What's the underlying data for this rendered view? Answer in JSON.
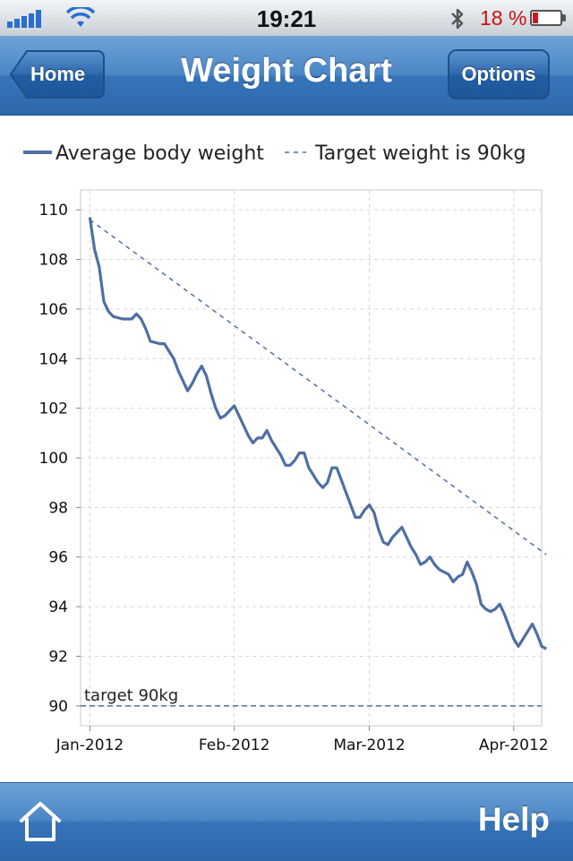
{
  "status_bar": {
    "time": "19:21",
    "battery_percent": "18 %",
    "signal_level": 5,
    "battery_level": 0.18
  },
  "navbar": {
    "title": "Weight Chart",
    "back_label": "Home",
    "options_label": "Options"
  },
  "tabbar": {
    "help_label": "Help",
    "home_icon": "home-icon"
  },
  "colors": {
    "series": "#4f6fa3",
    "nav": "#3674b9",
    "battery": "#cc1010"
  },
  "chart_data": {
    "type": "line",
    "grid": true,
    "legend": "top",
    "ylim": [
      89.2,
      110.8
    ],
    "y_ticks": [
      90,
      92,
      94,
      96,
      98,
      100,
      102,
      104,
      106,
      108,
      110
    ],
    "x_ticks": [
      {
        "date": "2012-01-01",
        "label": "Jan-2012"
      },
      {
        "date": "2012-02-01",
        "label": "Feb-2012"
      },
      {
        "date": "2012-03-01",
        "label": "Mar-2012"
      },
      {
        "date": "2012-04-01",
        "label": "Apr-2012"
      }
    ],
    "xlim": [
      "2011-12-30",
      "2012-04-07"
    ],
    "series": [
      {
        "name": "Average body weight",
        "style": "solid",
        "points": [
          [
            "2012-01-01",
            109.7
          ],
          [
            "2012-01-02",
            108.4
          ],
          [
            "2012-01-03",
            107.7
          ],
          [
            "2012-01-04",
            106.3
          ],
          [
            "2012-01-05",
            105.9
          ],
          [
            "2012-01-06",
            105.7
          ],
          [
            "2012-01-08",
            105.6
          ],
          [
            "2012-01-10",
            105.6
          ],
          [
            "2012-01-11",
            105.8
          ],
          [
            "2012-01-12",
            105.6
          ],
          [
            "2012-01-13",
            105.2
          ],
          [
            "2012-01-14",
            104.7
          ],
          [
            "2012-01-16",
            104.6
          ],
          [
            "2012-01-17",
            104.6
          ],
          [
            "2012-01-18",
            104.3
          ],
          [
            "2012-01-19",
            104.0
          ],
          [
            "2012-01-20",
            103.5
          ],
          [
            "2012-01-21",
            103.1
          ],
          [
            "2012-01-22",
            102.7
          ],
          [
            "2012-01-23",
            103.0
          ],
          [
            "2012-01-24",
            103.4
          ],
          [
            "2012-01-25",
            103.7
          ],
          [
            "2012-01-26",
            103.3
          ],
          [
            "2012-01-27",
            102.6
          ],
          [
            "2012-01-28",
            102.0
          ],
          [
            "2012-01-29",
            101.6
          ],
          [
            "2012-01-30",
            101.7
          ],
          [
            "2012-01-31",
            101.9
          ],
          [
            "2012-02-01",
            102.1
          ],
          [
            "2012-02-02",
            101.7
          ],
          [
            "2012-02-03",
            101.3
          ],
          [
            "2012-02-04",
            100.9
          ],
          [
            "2012-02-05",
            100.6
          ],
          [
            "2012-02-06",
            100.8
          ],
          [
            "2012-02-07",
            100.8
          ],
          [
            "2012-02-08",
            101.1
          ],
          [
            "2012-02-09",
            100.7
          ],
          [
            "2012-02-10",
            100.4
          ],
          [
            "2012-02-11",
            100.1
          ],
          [
            "2012-02-12",
            99.7
          ],
          [
            "2012-02-13",
            99.7
          ],
          [
            "2012-02-14",
            99.9
          ],
          [
            "2012-02-15",
            100.2
          ],
          [
            "2012-02-16",
            100.2
          ],
          [
            "2012-02-17",
            99.6
          ],
          [
            "2012-02-18",
            99.3
          ],
          [
            "2012-02-19",
            99.0
          ],
          [
            "2012-02-20",
            98.8
          ],
          [
            "2012-02-21",
            99.0
          ],
          [
            "2012-02-22",
            99.6
          ],
          [
            "2012-02-23",
            99.6
          ],
          [
            "2012-02-24",
            99.1
          ],
          [
            "2012-02-25",
            98.6
          ],
          [
            "2012-02-26",
            98.1
          ],
          [
            "2012-02-27",
            97.6
          ],
          [
            "2012-02-28",
            97.6
          ],
          [
            "2012-02-29",
            97.9
          ],
          [
            "2012-03-01",
            98.1
          ],
          [
            "2012-03-02",
            97.8
          ],
          [
            "2012-03-03",
            97.1
          ],
          [
            "2012-03-04",
            96.6
          ],
          [
            "2012-03-05",
            96.5
          ],
          [
            "2012-03-06",
            96.8
          ],
          [
            "2012-03-07",
            97.0
          ],
          [
            "2012-03-08",
            97.2
          ],
          [
            "2012-03-09",
            96.8
          ],
          [
            "2012-03-10",
            96.4
          ],
          [
            "2012-03-11",
            96.1
          ],
          [
            "2012-03-12",
            95.7
          ],
          [
            "2012-03-13",
            95.8
          ],
          [
            "2012-03-14",
            96.0
          ],
          [
            "2012-03-15",
            95.7
          ],
          [
            "2012-03-16",
            95.5
          ],
          [
            "2012-03-17",
            95.4
          ],
          [
            "2012-03-18",
            95.3
          ],
          [
            "2012-03-19",
            95.0
          ],
          [
            "2012-03-20",
            95.2
          ],
          [
            "2012-03-21",
            95.3
          ],
          [
            "2012-03-22",
            95.8
          ],
          [
            "2012-03-23",
            95.4
          ],
          [
            "2012-03-24",
            94.9
          ],
          [
            "2012-03-25",
            94.1
          ],
          [
            "2012-03-26",
            93.9
          ],
          [
            "2012-03-27",
            93.8
          ],
          [
            "2012-03-28",
            93.9
          ],
          [
            "2012-03-29",
            94.1
          ],
          [
            "2012-03-30",
            93.7
          ],
          [
            "2012-03-31",
            93.2
          ],
          [
            "2012-04-01",
            92.7
          ],
          [
            "2012-04-02",
            92.4
          ],
          [
            "2012-04-03",
            92.7
          ],
          [
            "2012-04-04",
            93.0
          ],
          [
            "2012-04-05",
            93.3
          ],
          [
            "2012-04-06",
            92.9
          ],
          [
            "2012-04-07",
            92.4
          ],
          [
            "2012-04-08",
            92.3
          ]
        ]
      },
      {
        "name": "Target weight is 90kg",
        "style": "dashed",
        "points": [
          [
            "2012-01-01",
            109.6
          ],
          [
            "2012-04-08",
            96.1
          ]
        ]
      }
    ],
    "annotations": [
      {
        "text": "target 90kg",
        "y": 90,
        "style": "dashed"
      }
    ]
  }
}
